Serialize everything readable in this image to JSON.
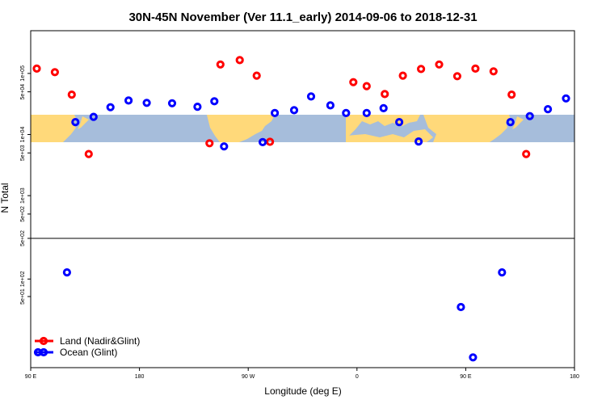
{
  "chart_data": {
    "type": "scatter",
    "title": "30N-45N November (Ver 11.1_early)   2014-09-06 to 2018-12-31",
    "xlabel": "Longitude (deg E)",
    "ylabel": "N Total",
    "x_ticks": [
      "90 E",
      "180",
      "90 W",
      "0",
      "90 E",
      "180"
    ],
    "xlim": [
      -270,
      180
    ],
    "upper_panel": {
      "y_scale": "log",
      "ylim": [
        200,
        500000
      ],
      "y_ticks": [
        "1e+05",
        "5e+04",
        "1e+04",
        "5e+03",
        "1e+03",
        "5e+02"
      ]
    },
    "lower_panel": {
      "y_scale": "log",
      "ylim": [
        3,
        500
      ],
      "y_ticks": [
        "5e+02",
        "1e+02",
        "5e+01"
      ]
    },
    "series": [
      {
        "name": "Land (Nadir&Glint)",
        "color": "#ff0000",
        "panel": "upper",
        "points": [
          [
            -265,
            120000
          ],
          [
            -250,
            105000
          ],
          [
            -236,
            45000
          ],
          [
            -222,
            4800
          ],
          [
            -122,
            7200
          ],
          [
            -113,
            140000
          ],
          [
            -97,
            165000
          ],
          [
            -83,
            92000
          ],
          [
            -72,
            7600
          ],
          [
            -3,
            72000
          ],
          [
            8,
            62000
          ],
          [
            23,
            46000
          ],
          [
            38,
            92000
          ],
          [
            53,
            118000
          ],
          [
            68,
            140000
          ],
          [
            83,
            90000
          ],
          [
            98,
            120000
          ],
          [
            113,
            108000
          ],
          [
            128,
            45000
          ],
          [
            140,
            4800
          ]
        ]
      },
      {
        "name": "Ocean (Glint)",
        "color": "#0000ff",
        "panel": "upper",
        "points": [
          [
            -233,
            16000
          ],
          [
            -218,
            19500
          ],
          [
            -204,
            28000
          ],
          [
            -189,
            36000
          ],
          [
            -174,
            33000
          ],
          [
            -153,
            32500
          ],
          [
            -132,
            28500
          ],
          [
            -118,
            35000
          ],
          [
            -110,
            6400
          ],
          [
            -78,
            7500
          ],
          [
            -68,
            22500
          ],
          [
            -52,
            25000
          ],
          [
            -38,
            42000
          ],
          [
            -22,
            30000
          ],
          [
            -9,
            22500
          ],
          [
            8,
            22500
          ],
          [
            22,
            27000
          ],
          [
            35,
            16000
          ],
          [
            51,
            7700
          ],
          [
            127,
            16000
          ],
          [
            143,
            20000
          ],
          [
            158,
            26000
          ],
          [
            173,
            39000
          ]
        ]
      },
      {
        "name": "Ocean (Glint)",
        "color": "#0000ff",
        "panel": "lower",
        "points": [
          [
            -240,
            130
          ],
          [
            86,
            33
          ],
          [
            96,
            4.5
          ],
          [
            120,
            130
          ]
        ]
      }
    ],
    "legend": {
      "position": "bottom-left",
      "entries": [
        {
          "label": "Land (Nadir&Glint)",
          "color": "#ff0000"
        },
        {
          "label": "Ocean (Glint)",
          "color": "#0000ff"
        }
      ]
    },
    "map_background": {
      "ocean_color": "#a6bddb",
      "land_color": "#ffd97a",
      "lat_band": "30N-45N"
    }
  }
}
